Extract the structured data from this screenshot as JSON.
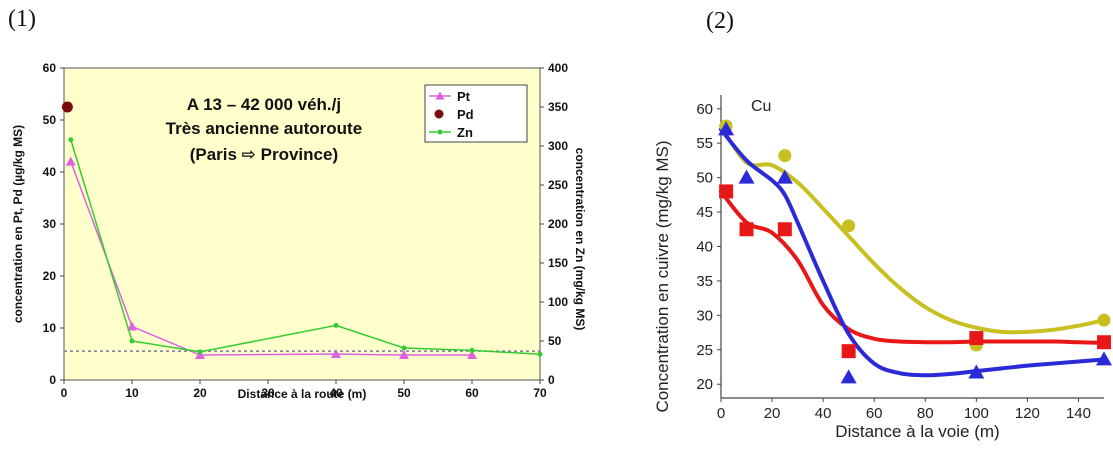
{
  "panels": {
    "left_tag": "(1)",
    "right_tag": "(2)"
  },
  "chart_data": [
    {
      "type": "line",
      "annotation": [
        "A 13 – 42 000 véh./j",
        "Très ancienne autoroute",
        "(Paris ⇨ Province)"
      ],
      "xlabel": "Distance à la route (m)",
      "ylabel": "concentration en Pt, Pd (µg/kg MS)",
      "y2label": "concentration en Zn (mg/kg MS)",
      "xlim": [
        0,
        70
      ],
      "ylim": [
        0,
        60
      ],
      "y2lim": [
        0,
        400
      ],
      "xticks": [
        0,
        10,
        20,
        30,
        40,
        50,
        60,
        70
      ],
      "yticks": [
        0,
        10,
        20,
        30,
        40,
        50,
        60
      ],
      "y2ticks": [
        0,
        50,
        100,
        150,
        200,
        250,
        300,
        350,
        400
      ],
      "legend_position": "top-right",
      "background": "#ffffcc",
      "series": [
        {
          "name": "Pt",
          "axis": "left",
          "color": "#e060e0",
          "marker": "triangle",
          "x": [
            1,
            10,
            20,
            40,
            50,
            60
          ],
          "y": [
            42,
            10.3,
            4.8,
            5.0,
            4.8,
            4.8
          ]
        },
        {
          "name": "Pd",
          "axis": "left",
          "color": "#7a0c0c",
          "marker": "circle",
          "x": [
            0.5
          ],
          "y": [
            52.5
          ]
        },
        {
          "name": "Zn",
          "axis": "right",
          "color": "#33cc33",
          "marker": "dot",
          "x": [
            1,
            10,
            20,
            40,
            50,
            60,
            70
          ],
          "y": [
            308,
            50,
            36,
            70,
            41,
            38,
            33
          ]
        }
      ],
      "reference_line": {
        "y_right": 37,
        "color": "#7a7aa0",
        "style": "dashed"
      }
    },
    {
      "type": "scatter",
      "annotation": "Cu",
      "xlabel": "Distance à la voie (m)",
      "ylabel": "Concentration en  cuivre (mg/kg MS)",
      "xlim": [
        0,
        150
      ],
      "ylim": [
        18,
        62
      ],
      "xticks": [
        0,
        20,
        40,
        60,
        80,
        100,
        120,
        140
      ],
      "yticks": [
        20,
        25,
        30,
        35,
        40,
        45,
        50,
        55,
        60
      ],
      "series": [
        {
          "color": "#c8c020",
          "marker": "circle",
          "x": [
            2,
            25,
            50,
            100,
            150
          ],
          "y": [
            57.5,
            53.2,
            43,
            25.7,
            29.3
          ],
          "curve_x": [
            0,
            10,
            20,
            30,
            40,
            50,
            60,
            70,
            80,
            90,
            100,
            110,
            120,
            130,
            140,
            150
          ],
          "curve_y": [
            57.5,
            52.2,
            51.8,
            49.3,
            45.5,
            41.5,
            37.5,
            34,
            31.2,
            29.3,
            28.2,
            27.6,
            27.6,
            27.9,
            28.5,
            29.3
          ]
        },
        {
          "color": "#e81818",
          "marker": "square",
          "x": [
            2,
            10,
            25,
            50,
            100,
            150
          ],
          "y": [
            48,
            42.5,
            42.5,
            24.8,
            26.7,
            26.1
          ],
          "curve_x": [
            0,
            10,
            20,
            30,
            40,
            50,
            60,
            70,
            80,
            90,
            100,
            110,
            120,
            130,
            140,
            150
          ],
          "curve_y": [
            48,
            43.5,
            42,
            38,
            31.5,
            28,
            26.6,
            26.2,
            26.1,
            26.1,
            26.2,
            26.2,
            26.2,
            26.2,
            26.1,
            26.0
          ]
        },
        {
          "color": "#2a2ad8",
          "marker": "triangle",
          "x": [
            2,
            10,
            25,
            50,
            100,
            150
          ],
          "y": [
            57,
            50,
            50,
            21,
            21.7,
            23.6
          ],
          "curve_x": [
            0,
            10,
            20,
            25,
            30,
            40,
            50,
            60,
            70,
            80,
            90,
            100,
            110,
            120,
            130,
            140,
            150
          ],
          "curve_y": [
            57,
            52.5,
            49.6,
            47.5,
            43.5,
            35,
            27.3,
            23,
            21.6,
            21.3,
            21.5,
            21.9,
            22.3,
            22.7,
            23.0,
            23.3,
            23.6
          ]
        }
      ]
    }
  ]
}
